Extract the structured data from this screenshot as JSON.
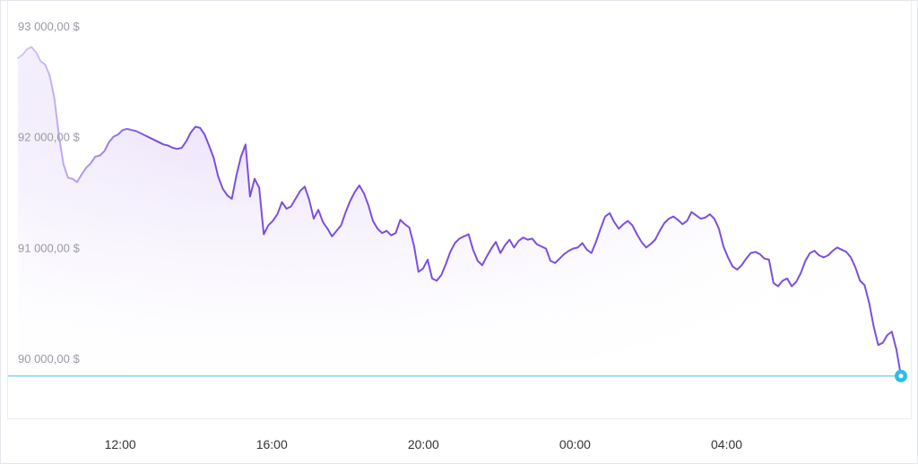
{
  "chart_data": {
    "type": "area",
    "title": "",
    "xlabel": "",
    "ylabel": "",
    "x_start_hour": 9.3,
    "x_end_hour": 32.6,
    "xlim": [
      9.3,
      32.6
    ],
    "ylim": [
      89600,
      93050
    ],
    "y_ticks": [
      {
        "value": 90000,
        "label": "90 000,00 $"
      },
      {
        "value": 91000,
        "label": "91 000,00 $"
      },
      {
        "value": 92000,
        "label": "92 000,00 $"
      },
      {
        "value": 93000,
        "label": "93 000,00 $"
      }
    ],
    "x_ticks": [
      {
        "value": 12,
        "label": "12:00"
      },
      {
        "value": 16,
        "label": "16:00"
      },
      {
        "value": 20,
        "label": "20:00"
      },
      {
        "value": 24,
        "label": "00:00"
      },
      {
        "value": 28,
        "label": "04:00"
      }
    ],
    "reference_line": {
      "value": 89840,
      "color": "#7fd6f2"
    },
    "line_color": "#7b4fe0",
    "fill_color": "#ede4fb",
    "marker_color": "#2bbde8",
    "grid": false,
    "series": [
      {
        "values": [
          92710,
          92740,
          92790,
          92810,
          92760,
          92680,
          92650,
          92550,
          92350,
          92010,
          91750,
          91630,
          91620,
          91590,
          91660,
          91720,
          91760,
          91820,
          91830,
          91870,
          91950,
          92000,
          92020,
          92060,
          92070,
          92060,
          92050,
          92030,
          92010,
          91990,
          91970,
          91950,
          91930,
          91920,
          91900,
          91890,
          91900,
          91960,
          92040,
          92090,
          92080,
          92020,
          91920,
          91810,
          91640,
          91530,
          91470,
          91440,
          91650,
          91820,
          91930,
          91460,
          91620,
          91540,
          91120,
          91200,
          91240,
          91300,
          91410,
          91350,
          91370,
          91440,
          91510,
          91550,
          91430,
          91260,
          91340,
          91230,
          91170,
          91100,
          91150,
          91200,
          91320,
          91420,
          91500,
          91560,
          91490,
          91380,
          91240,
          91170,
          91130,
          91150,
          91110,
          91130,
          91250,
          91210,
          91180,
          91020,
          90780,
          90810,
          90890,
          90720,
          90700,
          90750,
          90850,
          90960,
          91040,
          91080,
          91100,
          91120,
          90980,
          90880,
          90840,
          90920,
          90990,
          91050,
          90950,
          91020,
          91070,
          91000,
          91060,
          91090,
          91070,
          91080,
          91030,
          91010,
          90990,
          90880,
          90860,
          90900,
          90940,
          90970,
          90990,
          91000,
          91040,
          90980,
          90950,
          91050,
          91170,
          91280,
          91310,
          91230,
          91170,
          91210,
          91240,
          91200,
          91120,
          91050,
          91000,
          91030,
          91070,
          91150,
          91220,
          91260,
          91280,
          91250,
          91210,
          91240,
          91320,
          91290,
          91260,
          91270,
          91300,
          91260,
          91170,
          91010,
          90910,
          90830,
          90800,
          90840,
          90900,
          90950,
          90960,
          90940,
          90900,
          90890,
          90680,
          90650,
          90700,
          90720,
          90650,
          90690,
          90770,
          90880,
          90950,
          90970,
          90930,
          90910,
          90930,
          90970,
          91000,
          90980,
          90960,
          90910,
          90820,
          90700,
          90660,
          90500,
          90290,
          90120,
          90140,
          90210,
          90240,
          90080,
          89840
        ]
      }
    ]
  }
}
